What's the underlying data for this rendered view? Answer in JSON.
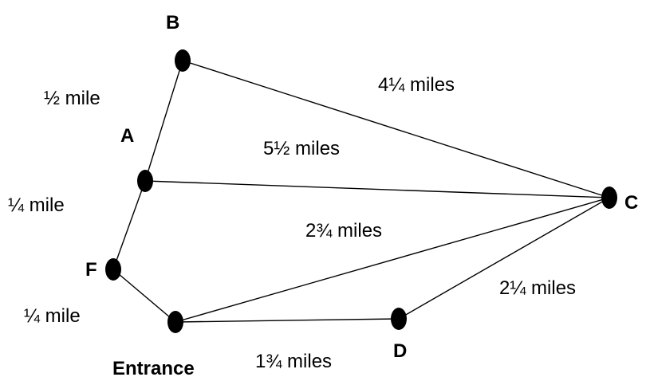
{
  "diagram": {
    "nodes": [
      {
        "id": "B",
        "label": "B"
      },
      {
        "id": "A",
        "label": "A"
      },
      {
        "id": "F",
        "label": "F"
      },
      {
        "id": "Entrance",
        "label": "Entrance"
      },
      {
        "id": "D",
        "label": "D"
      },
      {
        "id": "C",
        "label": "C"
      }
    ],
    "edges": [
      {
        "from": "B",
        "to": "A",
        "label": "½ mile"
      },
      {
        "from": "A",
        "to": "F",
        "label": "¼ mile"
      },
      {
        "from": "F",
        "to": "Entrance",
        "label": "¼ mile"
      },
      {
        "from": "B",
        "to": "C",
        "label": "4¼ miles"
      },
      {
        "from": "A",
        "to": "C",
        "label": "5½ miles"
      },
      {
        "from": "Entrance",
        "to": "C",
        "label": "2¾ miles"
      },
      {
        "from": "D",
        "to": "C",
        "label": "2¼ miles"
      },
      {
        "from": "Entrance",
        "to": "D",
        "label": "1¾ miles"
      }
    ],
    "colors": {
      "node": "#000000",
      "edge": "#000000",
      "text": "#000000",
      "background": "#ffffff"
    }
  }
}
